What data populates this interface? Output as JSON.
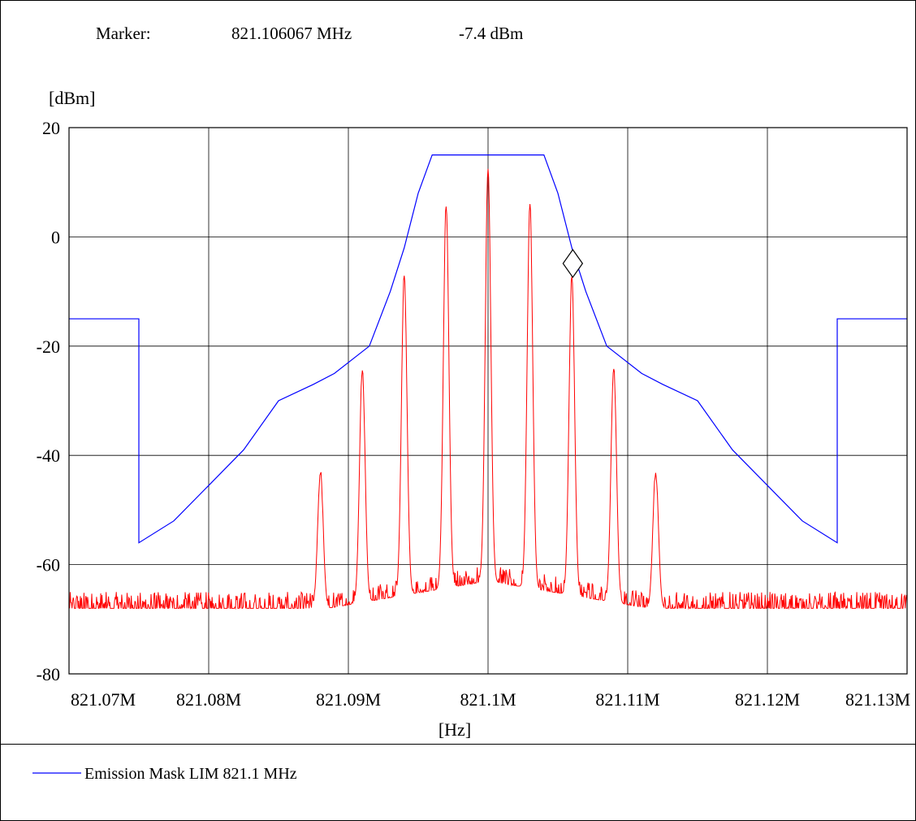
{
  "marker": {
    "label": "Marker:",
    "frequency": "821.106067 MHz",
    "level": "-7.4 dBm",
    "freq_mhz": 821.106067,
    "level_dbm": -7.4
  },
  "legend": {
    "entries": [
      {
        "label": "Emission Mask LIM  821.1 MHz",
        "color": "#0000ff"
      }
    ]
  },
  "chart_data": {
    "type": "line",
    "ylabel": "[dBm]",
    "xlabel": "[Hz]",
    "xlim": [
      821.07,
      821.13
    ],
    "ylim": [
      -80,
      20
    ],
    "y_ticks": [
      20,
      0,
      -20,
      -40,
      -60,
      -80
    ],
    "y_tick_labels": [
      "20",
      "0",
      "-20",
      "-40",
      "-60",
      "-80"
    ],
    "x_ticks": [
      821.07,
      821.08,
      821.09,
      821.1,
      821.11,
      821.12,
      821.13
    ],
    "x_tick_labels": [
      "821.07M",
      "821.08M",
      "821.09M",
      "821.1M",
      "821.11M",
      "821.12M",
      "821.13M"
    ],
    "x_gridlines": [
      821.08,
      821.09,
      821.1,
      821.11,
      821.12
    ],
    "y_gridlines": [
      0,
      -20,
      -40,
      -60
    ],
    "grid": true,
    "legend_position": "bottom-left",
    "series": [
      {
        "name": "Emission Mask LIM  821.1 MHz",
        "color": "#0000ff",
        "x": [
          821.07,
          821.075,
          821.075,
          821.0775,
          821.0825,
          821.085,
          821.0875,
          821.089,
          821.0915,
          821.093,
          821.094,
          821.095,
          821.096,
          821.104,
          821.105,
          821.106,
          821.107,
          821.1085,
          821.111,
          821.1125,
          821.115,
          821.1175,
          821.1225,
          821.125,
          821.125,
          821.13
        ],
        "y": [
          -15,
          -15,
          -56,
          -52,
          -39,
          -30,
          -27,
          -25,
          -20,
          -10,
          -2,
          8,
          15,
          15,
          8,
          -2,
          -10,
          -20,
          -25,
          -27,
          -30,
          -39,
          -52,
          -56,
          -15,
          -15
        ]
      },
      {
        "color": "#ff0000",
        "noise_floor": -68,
        "peaks": [
          {
            "x": 821.088,
            "y": -43
          },
          {
            "x": 821.091,
            "y": -24
          },
          {
            "x": 821.094,
            "y": -7
          },
          {
            "x": 821.097,
            "y": 6
          },
          {
            "x": 821.1,
            "y": 13
          },
          {
            "x": 821.103,
            "y": 6
          },
          {
            "x": 821.106,
            "y": -7
          },
          {
            "x": 821.109,
            "y": -24
          },
          {
            "x": 821.112,
            "y": -43
          }
        ]
      }
    ]
  }
}
